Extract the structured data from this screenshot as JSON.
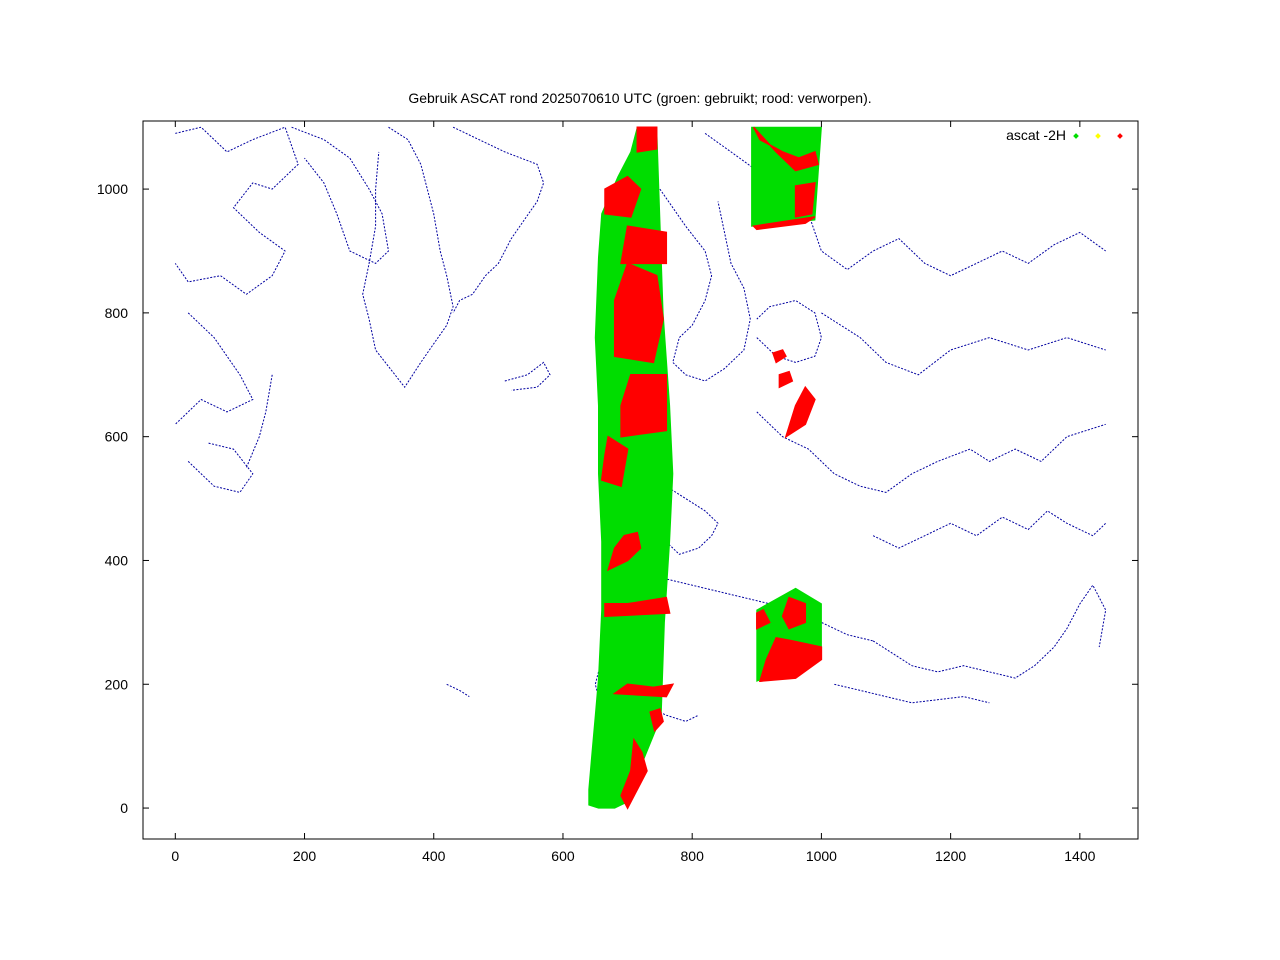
{
  "chart_data": {
    "type": "scatter",
    "title": "Gebruik ASCAT rond 2025070610 UTC (groen: gebruikt; rood: verworpen).",
    "xlabel": "",
    "ylabel": "",
    "xlim": [
      -50,
      1490
    ],
    "ylim": [
      -50,
      1110
    ],
    "xticks": [
      0,
      200,
      400,
      600,
      800,
      1000,
      1200,
      1400
    ],
    "yticks": [
      0,
      200,
      400,
      600,
      800,
      1000
    ],
    "grid": false,
    "legend_position": "top-right",
    "legend": [
      {
        "label": "ascat -2H",
        "color": "#00dd00"
      },
      {
        "label": "",
        "color": "#ffff00"
      },
      {
        "label": "",
        "color": "#ff0000"
      }
    ],
    "colors": {
      "used": "#00dd00",
      "unknown": "#ffff00",
      "rejected": "#ff0000",
      "coastline": "#0000a0"
    },
    "swaths": [
      {
        "name": "",
        "color": "#00dd00",
        "polygon": [
          [
            640,
            5
          ],
          [
            655,
            0
          ],
          [
            680,
            0
          ],
          [
            700,
            10
          ],
          [
            710,
            40
          ],
          [
            745,
            130
          ],
          [
            752,
            150
          ],
          [
            757,
            300
          ],
          [
            765,
            430
          ],
          [
            770,
            540
          ],
          [
            765,
            650
          ],
          [
            755,
            800
          ],
          [
            745,
            1100
          ],
          [
            715,
            1100
          ],
          [
            705,
            1060
          ],
          [
            685,
            1020
          ],
          [
            660,
            960
          ],
          [
            655,
            890
          ],
          [
            650,
            760
          ],
          [
            655,
            650
          ],
          [
            655,
            540
          ],
          [
            660,
            430
          ],
          [
            660,
            320
          ],
          [
            655,
            210
          ],
          [
            650,
            150
          ],
          [
            645,
            90
          ],
          [
            640,
            30
          ]
        ]
      },
      {
        "name": "",
        "color": "#00dd00",
        "polygon": [
          [
            892,
            940
          ],
          [
            990,
            950
          ],
          [
            1000,
            1100
          ],
          [
            892,
            1100
          ]
        ]
      },
      {
        "name": "",
        "color": "#00dd00",
        "polygon": [
          [
            900,
            205
          ],
          [
            1000,
            245
          ],
          [
            1000,
            330
          ],
          [
            960,
            355
          ],
          [
            900,
            320
          ]
        ]
      }
    ],
    "rejected_patches": [
      {
        "color": "#ff0000",
        "polygon": [
          [
            700,
            0
          ],
          [
            715,
            30
          ],
          [
            730,
            60
          ],
          [
            722,
            90
          ],
          [
            710,
            110
          ],
          [
            705,
            60
          ],
          [
            690,
            20
          ]
        ]
      },
      {
        "color": "#ff0000",
        "polygon": [
          [
            742,
            125
          ],
          [
            755,
            140
          ],
          [
            750,
            160
          ],
          [
            735,
            155
          ]
        ]
      },
      {
        "color": "#ff0000",
        "polygon": [
          [
            680,
            185
          ],
          [
            760,
            180
          ],
          [
            770,
            200
          ],
          [
            740,
            195
          ],
          [
            700,
            200
          ]
        ]
      },
      {
        "color": "#ff0000",
        "polygon": [
          [
            665,
            310
          ],
          [
            765,
            315
          ],
          [
            760,
            340
          ],
          [
            700,
            330
          ],
          [
            665,
            330
          ]
        ]
      },
      {
        "color": "#ff0000",
        "polygon": [
          [
            670,
            385
          ],
          [
            700,
            400
          ],
          [
            720,
            420
          ],
          [
            715,
            445
          ],
          [
            695,
            440
          ],
          [
            680,
            420
          ]
        ]
      },
      {
        "color": "#ff0000",
        "polygon": [
          [
            660,
            530
          ],
          [
            690,
            520
          ],
          [
            700,
            580
          ],
          [
            670,
            600
          ],
          [
            665,
            570
          ]
        ]
      },
      {
        "color": "#ff0000",
        "polygon": [
          [
            690,
            600
          ],
          [
            760,
            610
          ],
          [
            760,
            700
          ],
          [
            705,
            700
          ],
          [
            690,
            650
          ]
        ]
      },
      {
        "color": "#ff0000",
        "polygon": [
          [
            680,
            730
          ],
          [
            740,
            720
          ],
          [
            755,
            790
          ],
          [
            745,
            860
          ],
          [
            700,
            880
          ],
          [
            680,
            820
          ]
        ]
      },
      {
        "color": "#ff0000",
        "polygon": [
          [
            690,
            880
          ],
          [
            760,
            880
          ],
          [
            760,
            930
          ],
          [
            700,
            940
          ]
        ]
      },
      {
        "color": "#ff0000",
        "polygon": [
          [
            665,
            960
          ],
          [
            705,
            955
          ],
          [
            720,
            1000
          ],
          [
            700,
            1020
          ],
          [
            665,
            1000
          ]
        ]
      },
      {
        "color": "#ff0000",
        "polygon": [
          [
            715,
            1060
          ],
          [
            745,
            1065
          ],
          [
            745,
            1100
          ],
          [
            715,
            1100
          ]
        ]
      },
      {
        "color": "#ff0000",
        "polygon": [
          [
            905,
            1080
          ],
          [
            940,
            1060
          ],
          [
            965,
            1050
          ],
          [
            990,
            1060
          ],
          [
            995,
            1040
          ],
          [
            960,
            1030
          ],
          [
            930,
            1060
          ],
          [
            895,
            1100
          ]
        ]
      },
      {
        "color": "#ff0000",
        "polygon": [
          [
            960,
            1005
          ],
          [
            990,
            1010
          ],
          [
            985,
            960
          ],
          [
            960,
            955
          ]
        ]
      },
      {
        "color": "#ff0000",
        "polygon": [
          [
            895,
            940
          ],
          [
            990,
            955
          ],
          [
            975,
            945
          ],
          [
            900,
            935
          ]
        ]
      },
      {
        "color": "#ff0000",
        "polygon": [
          [
            905,
            205
          ],
          [
            960,
            210
          ],
          [
            1000,
            240
          ],
          [
            1000,
            260
          ],
          [
            955,
            270
          ],
          [
            930,
            275
          ],
          [
            915,
            240
          ]
        ]
      },
      {
        "color": "#ff0000",
        "polygon": [
          [
            950,
            290
          ],
          [
            975,
            300
          ],
          [
            975,
            330
          ],
          [
            950,
            340
          ],
          [
            940,
            310
          ]
        ]
      },
      {
        "color": "#ff0000",
        "polygon": [
          [
            900,
            290
          ],
          [
            920,
            300
          ],
          [
            910,
            320
          ],
          [
            900,
            315
          ]
        ]
      },
      {
        "color": "#ff0000",
        "polygon": [
          [
            930,
            720
          ],
          [
            945,
            730
          ],
          [
            940,
            740
          ],
          [
            925,
            735
          ]
        ]
      },
      {
        "color": "#ff0000",
        "polygon": [
          [
            935,
            680
          ],
          [
            955,
            690
          ],
          [
            950,
            705
          ],
          [
            935,
            700
          ]
        ]
      },
      {
        "color": "#ff0000",
        "polygon": [
          [
            945,
            600
          ],
          [
            975,
            620
          ],
          [
            990,
            660
          ],
          [
            975,
            680
          ],
          [
            960,
            650
          ]
        ]
      }
    ]
  }
}
